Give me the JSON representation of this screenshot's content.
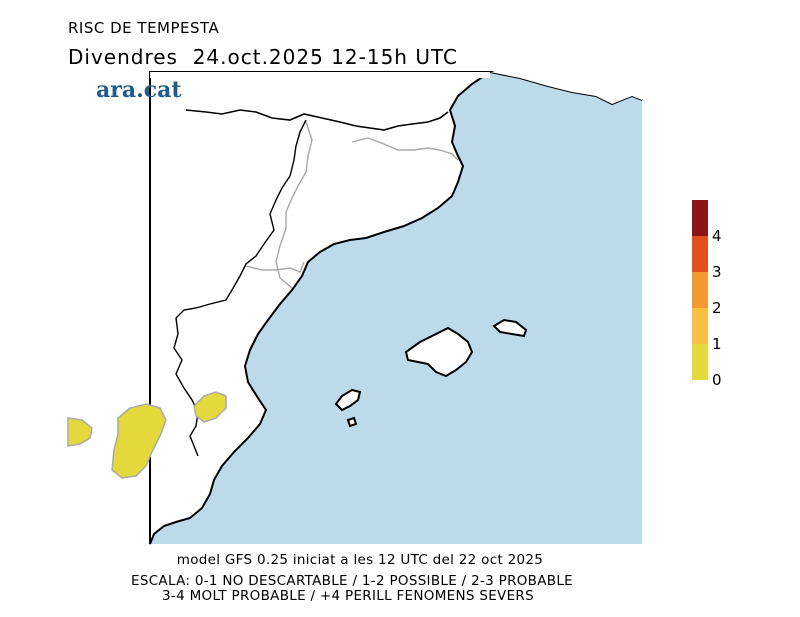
{
  "header": {
    "title": "RISC DE TEMPESTA",
    "subtitle": "Divendres  24.oct.2025 12-15h UTC"
  },
  "logo": {
    "text": "ara.cat",
    "color": "#1f5c8f"
  },
  "map": {
    "sea_color": "#bddaea",
    "land_color": "#ffffff",
    "risk_area_color": "#e3d93c"
  },
  "legend": {
    "labels": [
      "4",
      "3",
      "2",
      "1",
      "0"
    ],
    "colors": [
      "#8c1414",
      "#e0501e",
      "#f59a30",
      "#f7c040",
      "#e3d93c"
    ]
  },
  "footer": {
    "line1": "model GFS 0.25 iniciat a les 12 UTC del 22 oct 2025",
    "line2": "ESCALA: 0-1 NO DESCARTABLE / 1-2 POSSIBLE / 2-3 PROBABLE",
    "line3": "3-4 MOLT PROBABLE / +4 PERILL FENOMENS SEVERS"
  }
}
